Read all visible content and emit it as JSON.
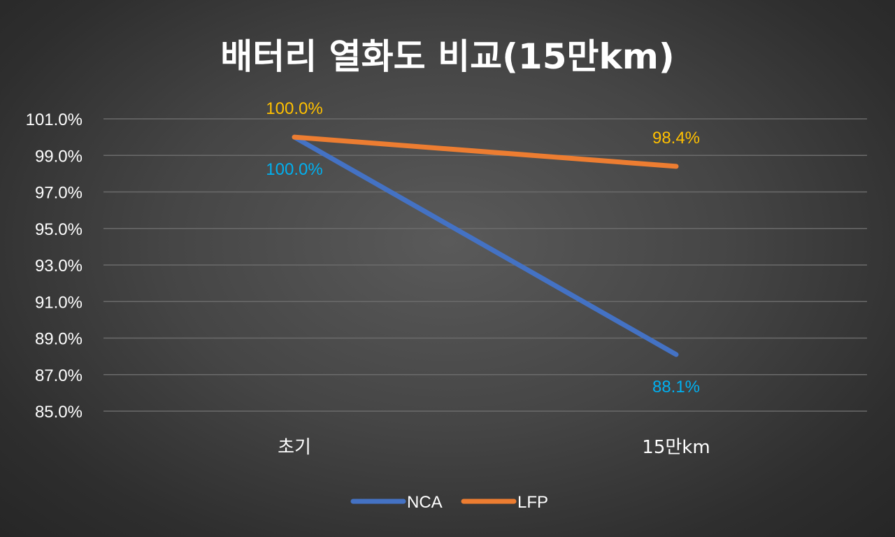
{
  "chart_data": {
    "type": "line",
    "title": "배터리 열화도 비교(15만km)",
    "categories": [
      "초기",
      "15만km"
    ],
    "series": [
      {
        "name": "NCA",
        "values": [
          100.0,
          88.1
        ],
        "labels": [
          "100.0%",
          "88.1%"
        ],
        "color": "#4472C4",
        "label_color": "#00B0F0",
        "label_position": "below"
      },
      {
        "name": "LFP",
        "values": [
          100.0,
          98.4
        ],
        "labels": [
          "100.0%",
          "98.4%"
        ],
        "color": "#ED7D31",
        "label_color": "#FFC000",
        "label_position": "above"
      }
    ],
    "yticks": [
      "101.0%",
      "99.0%",
      "97.0%",
      "95.0%",
      "93.0%",
      "91.0%",
      "89.0%",
      "87.0%",
      "85.0%"
    ],
    "ytick_values": [
      101,
      99,
      97,
      95,
      93,
      91,
      89,
      87,
      85
    ],
    "ylim": [
      85,
      101
    ],
    "xlabel": "",
    "ylabel": "",
    "grid": true,
    "legend_position": "bottom",
    "colors": {
      "background": "#404040",
      "gridline": "#6b6b6b",
      "text": "#ffffff"
    }
  }
}
